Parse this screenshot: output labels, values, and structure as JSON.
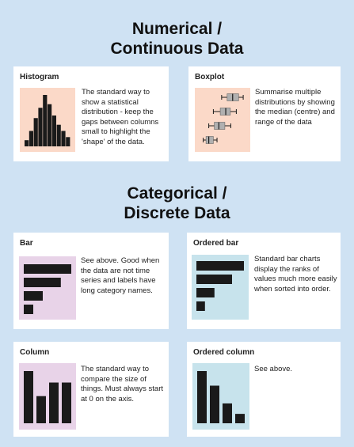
{
  "headings": {
    "numerical": [
      "Numerical /",
      "Continuous Data"
    ],
    "categorical": [
      "Categorical /",
      "Discrete Data"
    ]
  },
  "cards": {
    "histogram": {
      "title": "Histogram",
      "desc": "The standard way to show a statistical distribution - keep the gaps between columns small to highlight the 'shape' of the data."
    },
    "boxplot": {
      "title": "Boxplot",
      "desc": "Summarise multiple distributions by showing the median (centre) and range of the data"
    },
    "bar": {
      "title": "Bar",
      "desc": "See above. Good when the data are not time series and labels have long category names."
    },
    "ordered_bar": {
      "title": "Ordered bar",
      "desc": "Standard bar charts display the ranks of values much more easily when sorted into order."
    },
    "column": {
      "title": "Column",
      "desc": "The standard way to compare the size of things. Must always start at 0 on the axis."
    },
    "ordered_column": {
      "title": "Ordered column",
      "desc": "See above."
    }
  },
  "colors": {
    "background": "#cfe2f3",
    "peach": "#fbd9c8",
    "lilac": "#e8d3e8",
    "light_blue": "#c7e3ec",
    "mark": "#1a1a1a"
  },
  "thumbs": {
    "histogram": [
      0.12,
      0.3,
      0.55,
      0.75,
      1.0,
      0.82,
      0.6,
      0.42,
      0.3,
      0.18
    ],
    "bar": [
      1.0,
      0.78,
      0.4,
      0.2
    ],
    "ordered_bar": [
      1.0,
      0.75,
      0.38,
      0.18
    ],
    "column": [
      1.0,
      0.52,
      0.78,
      0.78
    ],
    "ordered_column": [
      1.0,
      0.72,
      0.38,
      0.18
    ],
    "boxplot": [
      {
        "min": 0.48,
        "q1": 0.6,
        "median": 0.72,
        "q3": 0.85,
        "max": 0.95
      },
      {
        "min": 0.3,
        "q1": 0.45,
        "median": 0.57,
        "q3": 0.67,
        "max": 0.8
      },
      {
        "min": 0.2,
        "q1": 0.32,
        "median": 0.42,
        "q3": 0.55,
        "max": 0.68
      },
      {
        "min": 0.08,
        "q1": 0.14,
        "median": 0.2,
        "q3": 0.3,
        "max": 0.38
      }
    ]
  }
}
